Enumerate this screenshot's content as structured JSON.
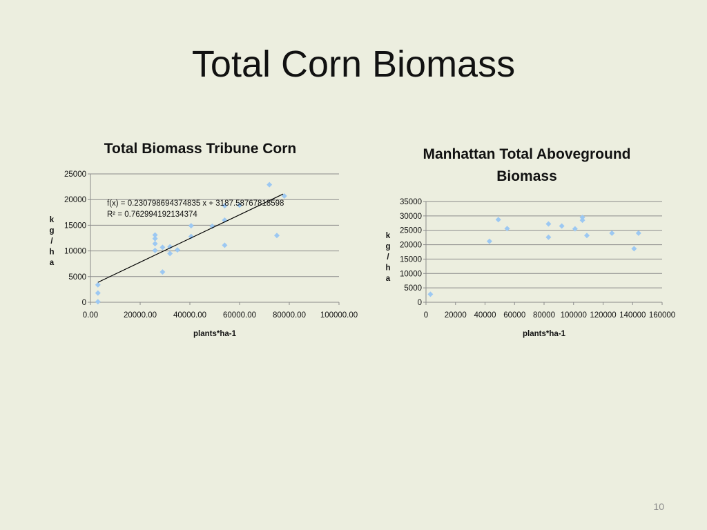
{
  "slide": {
    "title": "Total Corn Biomass",
    "page_number": "10"
  },
  "colors": {
    "background": "#eceedf",
    "marker": "#9cc8f2",
    "gridline": "#8a8a8a",
    "trendline": "#000000"
  },
  "chart_data": [
    {
      "type": "scatter",
      "title": "Total Biomass Tribune Corn",
      "title_lines": [
        "Total Biomass Tribune Corn"
      ],
      "xlabel": "plants*ha-1",
      "ylabel": "kg/ha",
      "xlim": [
        0,
        100000
      ],
      "ylim": [
        0,
        25000
      ],
      "x_ticks": [
        0,
        20000,
        40000,
        60000,
        80000,
        100000
      ],
      "x_tick_labels": [
        "0.00",
        "20000.00",
        "40000.00",
        "60000.00",
        "80000.00",
        "100000.00"
      ],
      "y_ticks": [
        0,
        5000,
        10000,
        15000,
        20000,
        25000
      ],
      "y_tick_labels": [
        "0",
        "5000",
        "10000",
        "15000",
        "20000",
        "25000"
      ],
      "grid": true,
      "legend": "none",
      "marker": "diamond",
      "trendline": {
        "type": "linear",
        "slope": 0.230798694374835,
        "intercept": 3187.58767818598,
        "x_range": [
          3000,
          77500
        ],
        "equation": "f(x) = 0.230798694374835 x + 3187.58767818598",
        "r_squared": "R² = 0.762994192134374"
      },
      "points": [
        {
          "x": 3000,
          "y": 3400
        },
        {
          "x": 3000,
          "y": 1800
        },
        {
          "x": 3000,
          "y": 100
        },
        {
          "x": 26000,
          "y": 13100
        },
        {
          "x": 26000,
          "y": 12400
        },
        {
          "x": 26000,
          "y": 11400
        },
        {
          "x": 26000,
          "y": 10100
        },
        {
          "x": 29000,
          "y": 10700
        },
        {
          "x": 29000,
          "y": 5900
        },
        {
          "x": 32000,
          "y": 10800
        },
        {
          "x": 32000,
          "y": 9500
        },
        {
          "x": 35000,
          "y": 10200
        },
        {
          "x": 40500,
          "y": 14900
        },
        {
          "x": 40500,
          "y": 12800
        },
        {
          "x": 49000,
          "y": 14800
        },
        {
          "x": 54000,
          "y": 18800
        },
        {
          "x": 54000,
          "y": 16000
        },
        {
          "x": 54000,
          "y": 11100
        },
        {
          "x": 60000,
          "y": 18900
        },
        {
          "x": 72000,
          "y": 22900
        },
        {
          "x": 75000,
          "y": 13000
        },
        {
          "x": 78000,
          "y": 20700
        }
      ]
    },
    {
      "type": "scatter",
      "title": "Manhattan Total Aboveground Biomass",
      "title_lines": [
        "Manhattan Total Aboveground",
        "Biomass"
      ],
      "xlabel": "plants*ha-1",
      "ylabel": "kg/ha",
      "xlim": [
        0,
        160000
      ],
      "ylim": [
        0,
        35000
      ],
      "x_ticks": [
        0,
        20000,
        40000,
        60000,
        80000,
        100000,
        120000,
        140000,
        160000
      ],
      "x_tick_labels": [
        "0",
        "20000",
        "40000",
        "60000",
        "80000",
        "100000",
        "120000",
        "140000",
        "160000"
      ],
      "y_ticks": [
        0,
        5000,
        10000,
        15000,
        20000,
        25000,
        30000,
        35000
      ],
      "y_tick_labels": [
        "0",
        "5000",
        "10000",
        "15000",
        "20000",
        "25000",
        "30000",
        "35000"
      ],
      "grid": true,
      "legend": "none",
      "marker": "diamond",
      "points": [
        {
          "x": 3000,
          "y": 2800
        },
        {
          "x": 43000,
          "y": 21200
        },
        {
          "x": 49000,
          "y": 28700
        },
        {
          "x": 55000,
          "y": 25600
        },
        {
          "x": 83000,
          "y": 27200
        },
        {
          "x": 83000,
          "y": 22600
        },
        {
          "x": 92000,
          "y": 26500
        },
        {
          "x": 101000,
          "y": 25500
        },
        {
          "x": 106000,
          "y": 29500
        },
        {
          "x": 106000,
          "y": 28500
        },
        {
          "x": 109000,
          "y": 23200
        },
        {
          "x": 126000,
          "y": 24000
        },
        {
          "x": 141000,
          "y": 18600
        },
        {
          "x": 144000,
          "y": 24000
        }
      ]
    }
  ]
}
